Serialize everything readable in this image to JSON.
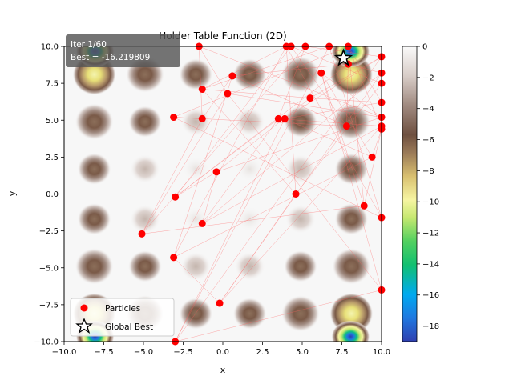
{
  "chart_data": {
    "type": "scatter",
    "title": "Holder Table Function (2D)",
    "xlabel": "x",
    "ylabel": "y",
    "xlim": [
      -10,
      10
    ],
    "ylim": [
      -10,
      10
    ],
    "x_ticks": [
      "−10.0",
      "−7.5",
      "−5.0",
      "−2.5",
      "0.0",
      "2.5",
      "5.0",
      "7.5",
      "10.0"
    ],
    "y_ticks": [
      "−10.0",
      "−7.5",
      "−5.0",
      "−2.5",
      "0.0",
      "2.5",
      "5.0",
      "7.5",
      "10.0"
    ],
    "info_box": {
      "iteration": "Iter 1/60",
      "best": "Best = -16.219809"
    },
    "colorbar": {
      "range": [
        -19,
        0
      ],
      "ticks": [
        "0",
        "−2",
        "−4",
        "−6",
        "−8",
        "−10",
        "−12",
        "−14",
        "−16",
        "−18"
      ],
      "colors": [
        "#2f3fb0",
        "#1f78e0",
        "#00aaf0",
        "#12c070",
        "#52d060",
        "#c6e870",
        "#f6f5a2",
        "#d9c070",
        "#9a7a58",
        "#6e5040",
        "#a08a80",
        "#d8cdc8",
        "#fafafa"
      ]
    },
    "series": [
      {
        "name": "Particles",
        "color": "#ff0000",
        "points": [
          [
            -1.5,
            10.0
          ],
          [
            4.0,
            10.0
          ],
          [
            4.3,
            10.0
          ],
          [
            5.2,
            10.0
          ],
          [
            6.7,
            10.0
          ],
          [
            7.9,
            10.0
          ],
          [
            7.9,
            8.8
          ],
          [
            10.0,
            9.3
          ],
          [
            10.0,
            8.2
          ],
          [
            10.0,
            7.5
          ],
          [
            10.0,
            6.2
          ],
          [
            10.0,
            5.2
          ],
          [
            10.0,
            4.6
          ],
          [
            10.0,
            4.4
          ],
          [
            10.0,
            -1.6
          ],
          [
            10.0,
            -6.5
          ],
          [
            6.2,
            8.2
          ],
          [
            0.6,
            8.0
          ],
          [
            -1.3,
            7.1
          ],
          [
            0.3,
            6.8
          ],
          [
            5.5,
            6.5
          ],
          [
            -3.1,
            5.2
          ],
          [
            -1.3,
            5.1
          ],
          [
            3.5,
            5.1
          ],
          [
            3.9,
            5.1
          ],
          [
            7.8,
            4.6
          ],
          [
            9.4,
            2.5
          ],
          [
            -0.4,
            1.5
          ],
          [
            -3.0,
            -0.2
          ],
          [
            4.6,
            0.0
          ],
          [
            8.9,
            -0.8
          ],
          [
            -1.3,
            -2.0
          ],
          [
            -5.1,
            -2.7
          ],
          [
            -3.1,
            -4.3
          ],
          [
            -0.2,
            -7.4
          ],
          [
            -3.0,
            -10.0
          ]
        ]
      },
      {
        "name": "Global Best",
        "color": "#000000",
        "points": [
          [
            7.6,
            9.2
          ]
        ]
      }
    ],
    "legend": {
      "placement": "lower-left",
      "entries": [
        "Particles",
        "Global Best"
      ]
    },
    "background": "contour plot of Holder Table function",
    "grid": false
  }
}
